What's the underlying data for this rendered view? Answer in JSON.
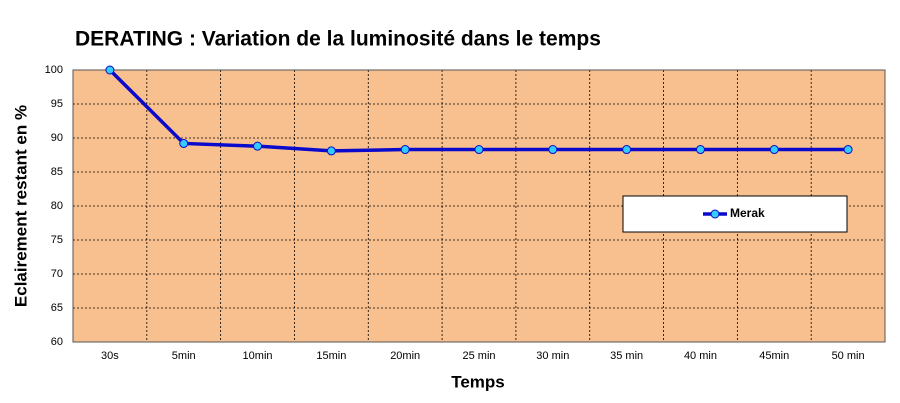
{
  "chart_data": {
    "type": "line",
    "title": "DERATING : Variation de la luminosité dans le temps",
    "x_label": "Temps",
    "y_label": "Eclairement restant en %",
    "categories": [
      "30s",
      "5min",
      "10min",
      "15min",
      "20min",
      "25 min",
      "30 min",
      "35 min",
      "40 min",
      "45min",
      "50 min"
    ],
    "series": [
      {
        "name": "Merak",
        "color": "#0a0acc",
        "marker_color": "#33ccff",
        "values": [
          100,
          89.2,
          88.8,
          88.1,
          88.3,
          88.3,
          88.3,
          88.3,
          88.3,
          88.3,
          88.3
        ]
      }
    ],
    "ylim": [
      60,
      100
    ],
    "yticks": [
      60,
      65,
      70,
      75,
      80,
      85,
      90,
      95,
      100
    ],
    "grid": true,
    "background": "#f9c08f",
    "legend_position": "right"
  }
}
